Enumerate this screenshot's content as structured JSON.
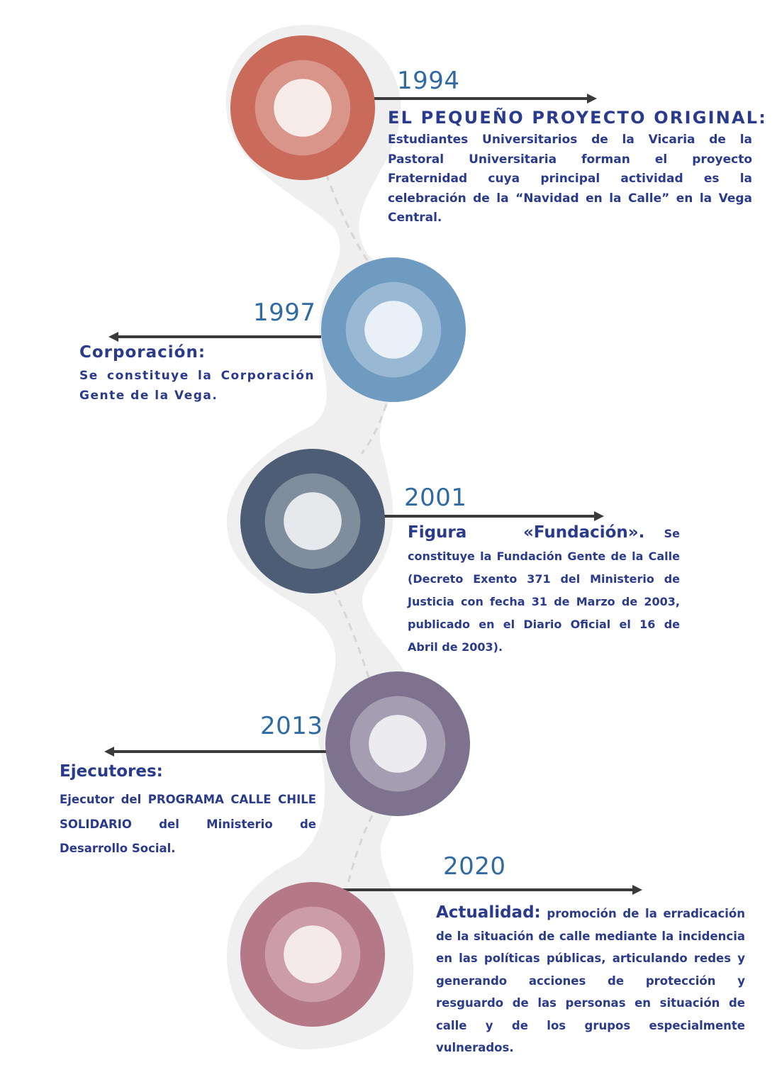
{
  "colors": {
    "ribbon": "#efefef",
    "dash": "#d8d8d8",
    "arrow": "#3a3a3a",
    "year": "#2f6aa3",
    "text": "#2a3a8c"
  },
  "milestones": [
    {
      "year": "1994",
      "heading": "EL PEQUEÑO PROYECTO ORIGINAL:",
      "body": "Estudiantes Universitarios de la Vicaria de la Pastoral Universitaria forman el proyecto Fraternidad cuya principal actividad es la celebración de la “Navidad en la Calle” en la Vega Central.",
      "side": "right",
      "ring_colors": [
        "#c96a5a",
        "#d9958a",
        "#f7ebe8"
      ],
      "arrow_icon": "arrow-right-icon"
    },
    {
      "year": "1997",
      "heading": "Corporación:",
      "body": "Se constituye la Corporación Gente de la Vega.",
      "side": "left",
      "ring_colors": [
        "#6f9bc1",
        "#98b8d3",
        "#e9f0f7"
      ],
      "arrow_icon": "arrow-left-icon"
    },
    {
      "year": "2001",
      "heading": "Figura «Fundación».",
      "body": "Se constituye la Fundación Gente de la Calle (Decreto Exento 371 del Ministerio de Justicia con fecha 31 de Marzo de 2003, publicado en el Diario Oficial el 16 de Abril de 2003).",
      "side": "right",
      "ring_colors": [
        "#4c5d75",
        "#7f8d9c",
        "#e6e8ec"
      ],
      "arrow_icon": "arrow-right-icon"
    },
    {
      "year": "2013",
      "heading": "Ejecutores:",
      "body": "Ejecutor del PROGRAMA CALLE CHILE SOLIDARIO del Ministerio de Desarrollo Social.",
      "side": "left",
      "ring_colors": [
        "#7d738f",
        "#a59db1",
        "#ecebef"
      ],
      "arrow_icon": "arrow-left-icon"
    },
    {
      "year": "2020",
      "heading": "Actualidad:",
      "body": "promoción de la erradicación de la situación de calle mediante la incidencia en las políticas públicas, articulando redes y generando acciones de protección y resguardo de las personas en situación de calle y de los grupos especialmente vulnerados.",
      "side": "right",
      "ring_colors": [
        "#b47887",
        "#cc9da8",
        "#f4eaec"
      ],
      "arrow_icon": "arrow-right-icon"
    }
  ]
}
